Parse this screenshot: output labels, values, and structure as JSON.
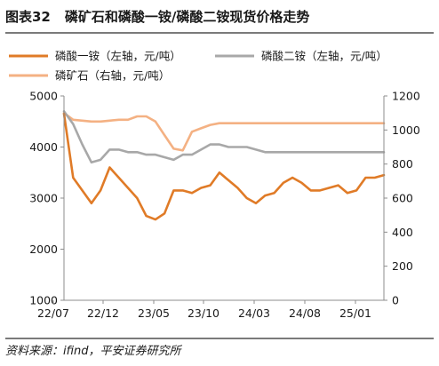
{
  "figure": {
    "number": "图表32",
    "title": "磷矿石和磷酸一铵/磷酸二铵现货价格走势",
    "source": "资料来源：ifind，平安证券研究所"
  },
  "chart_data": {
    "type": "line",
    "title": "磷矿石和磷酸一铵/磷酸二铵现货价格走势",
    "x_ticks": [
      "22/07",
      "22/12",
      "23/05",
      "23/10",
      "24/03",
      "24/08",
      "25/01"
    ],
    "x_range": [
      "2022-07",
      "2025-06"
    ],
    "y_left": {
      "min": 1000,
      "max": 5000,
      "ticks": [
        1000,
        2000,
        3000,
        4000,
        5000
      ]
    },
    "y_right": {
      "min": 0,
      "max": 1200,
      "ticks": [
        0,
        200,
        400,
        600,
        800,
        1000,
        1200
      ]
    },
    "grid": false,
    "legend_position": "top",
    "series": [
      {
        "name": "磷酸一铵（左轴，元/吨）",
        "axis": "left",
        "color": "#E07B27",
        "x": [
          "2022-07",
          "2022-08",
          "2022-09",
          "2022-10",
          "2022-11",
          "2022-12",
          "2023-01",
          "2023-02",
          "2023-03",
          "2023-04",
          "2023-05",
          "2023-06",
          "2023-07",
          "2023-08",
          "2023-09",
          "2023-10",
          "2023-11",
          "2023-12",
          "2024-01",
          "2024-02",
          "2024-03",
          "2024-04",
          "2024-05",
          "2024-06",
          "2024-07",
          "2024-08",
          "2024-09",
          "2024-10",
          "2024-11",
          "2024-12",
          "2025-01",
          "2025-02",
          "2025-03",
          "2025-04",
          "2025-05",
          "2025-06"
        ],
        "values": [
          4650,
          3400,
          3150,
          2900,
          3150,
          3600,
          3400,
          3200,
          3000,
          2650,
          2580,
          2700,
          3150,
          3150,
          3100,
          3200,
          3250,
          3500,
          3350,
          3200,
          3000,
          2900,
          3050,
          3100,
          3300,
          3400,
          3300,
          3150,
          3150,
          3200,
          3250,
          3100,
          3150,
          3400,
          3400,
          3450
        ]
      },
      {
        "name": "磷酸二铵（左轴，元/吨）",
        "axis": "left",
        "color": "#A8A8A8",
        "x": [
          "2022-07",
          "2022-08",
          "2022-09",
          "2022-10",
          "2022-11",
          "2022-12",
          "2023-01",
          "2023-02",
          "2023-03",
          "2023-04",
          "2023-05",
          "2023-06",
          "2023-07",
          "2023-08",
          "2023-09",
          "2023-10",
          "2023-11",
          "2023-12",
          "2024-01",
          "2024-02",
          "2024-03",
          "2024-04",
          "2024-05",
          "2024-06",
          "2024-07",
          "2024-08",
          "2024-09",
          "2024-10",
          "2024-11",
          "2024-12",
          "2025-01",
          "2025-02",
          "2025-03",
          "2025-04",
          "2025-05",
          "2025-06"
        ],
        "values": [
          4700,
          4450,
          4050,
          3700,
          3750,
          3950,
          3950,
          3900,
          3900,
          3850,
          3850,
          3800,
          3750,
          3850,
          3850,
          3950,
          4050,
          4050,
          4000,
          4000,
          4000,
          3950,
          3900,
          3900,
          3900,
          3900,
          3900,
          3900,
          3900,
          3900,
          3900,
          3900,
          3900,
          3900,
          3900,
          3900
        ]
      },
      {
        "name": "磷矿石（右轴，元/吨）",
        "axis": "right",
        "color": "#F4B183",
        "x": [
          "2022-07",
          "2022-08",
          "2022-09",
          "2022-10",
          "2022-11",
          "2022-12",
          "2023-01",
          "2023-02",
          "2023-03",
          "2023-04",
          "2023-05",
          "2023-06",
          "2023-07",
          "2023-08",
          "2023-09",
          "2023-10",
          "2023-11",
          "2023-12",
          "2024-01",
          "2024-02",
          "2024-03",
          "2024-04",
          "2024-05",
          "2024-06",
          "2024-07",
          "2024-08",
          "2024-09",
          "2024-10",
          "2024-11",
          "2024-12",
          "2025-01",
          "2025-02",
          "2025-03",
          "2025-04",
          "2025-05",
          "2025-06"
        ],
        "values": [
          1100,
          1060,
          1055,
          1050,
          1050,
          1055,
          1060,
          1060,
          1080,
          1080,
          1050,
          970,
          890,
          880,
          990,
          1010,
          1030,
          1040,
          1040,
          1040,
          1040,
          1040,
          1040,
          1040,
          1040,
          1040,
          1040,
          1040,
          1040,
          1040,
          1040,
          1040,
          1040,
          1040,
          1040,
          1040
        ]
      }
    ]
  }
}
